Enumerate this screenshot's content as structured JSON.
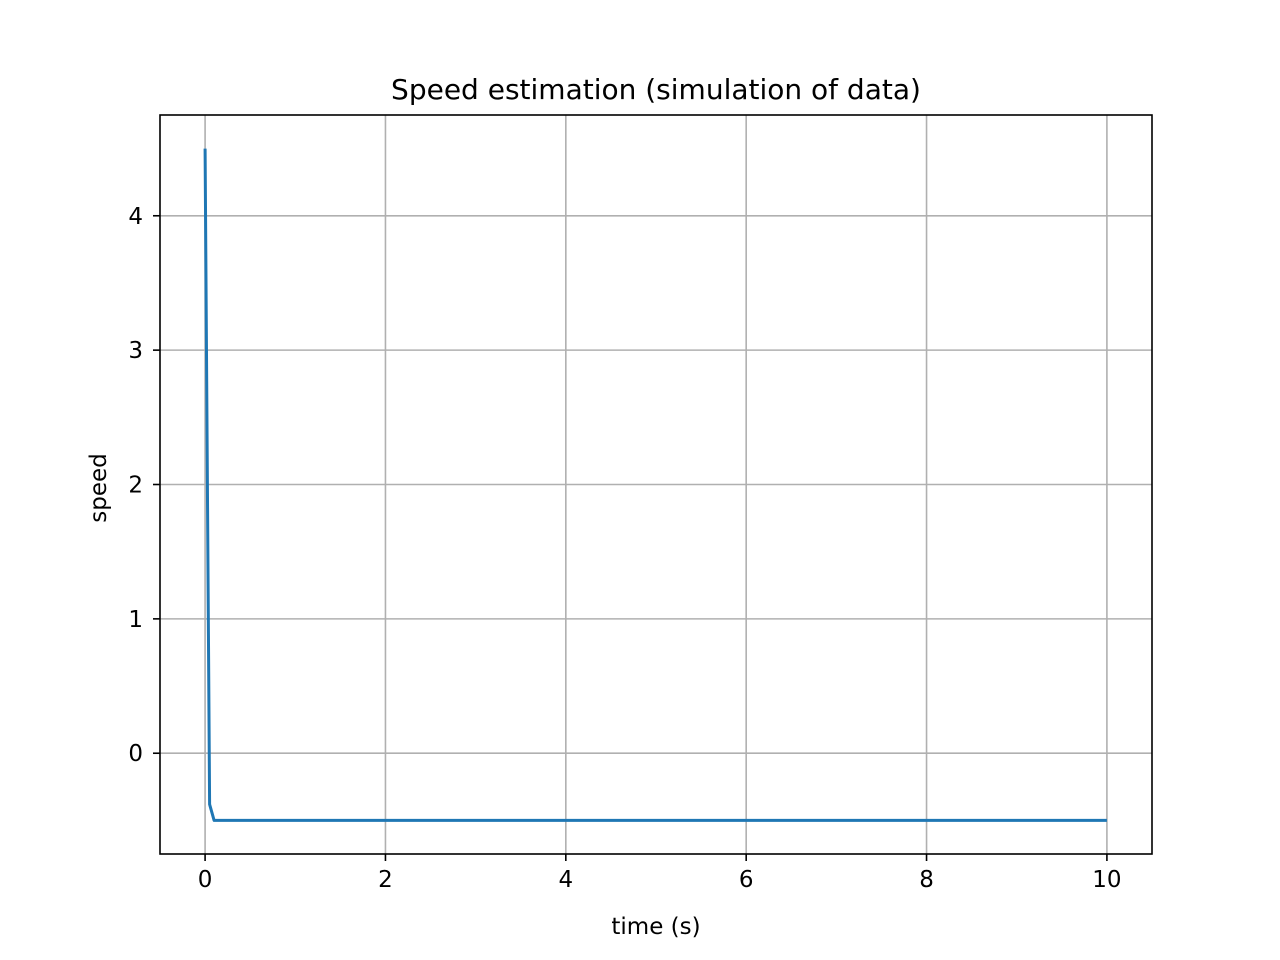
{
  "chart_data": {
    "type": "line",
    "title": "Speed estimation (simulation of data)",
    "xlabel": "time (s)",
    "ylabel": "speed",
    "xlim": [
      -0.5,
      10.5
    ],
    "ylim": [
      -0.75,
      4.75
    ],
    "xticks": [
      0,
      2,
      4,
      6,
      8,
      10
    ],
    "yticks": [
      0,
      1,
      2,
      3,
      4
    ],
    "grid": true,
    "legend": "none",
    "series": [
      {
        "color": "#1f77b4",
        "x": [
          0,
          0.05,
          0.1,
          0.2,
          1,
          2,
          3,
          4,
          5,
          6,
          7,
          8,
          9,
          10
        ],
        "y": [
          4.5,
          -0.38,
          -0.5,
          -0.5,
          -0.5,
          -0.5,
          -0.5,
          -0.5,
          -0.5,
          -0.5,
          -0.5,
          -0.5,
          -0.5,
          -0.5
        ]
      }
    ]
  }
}
